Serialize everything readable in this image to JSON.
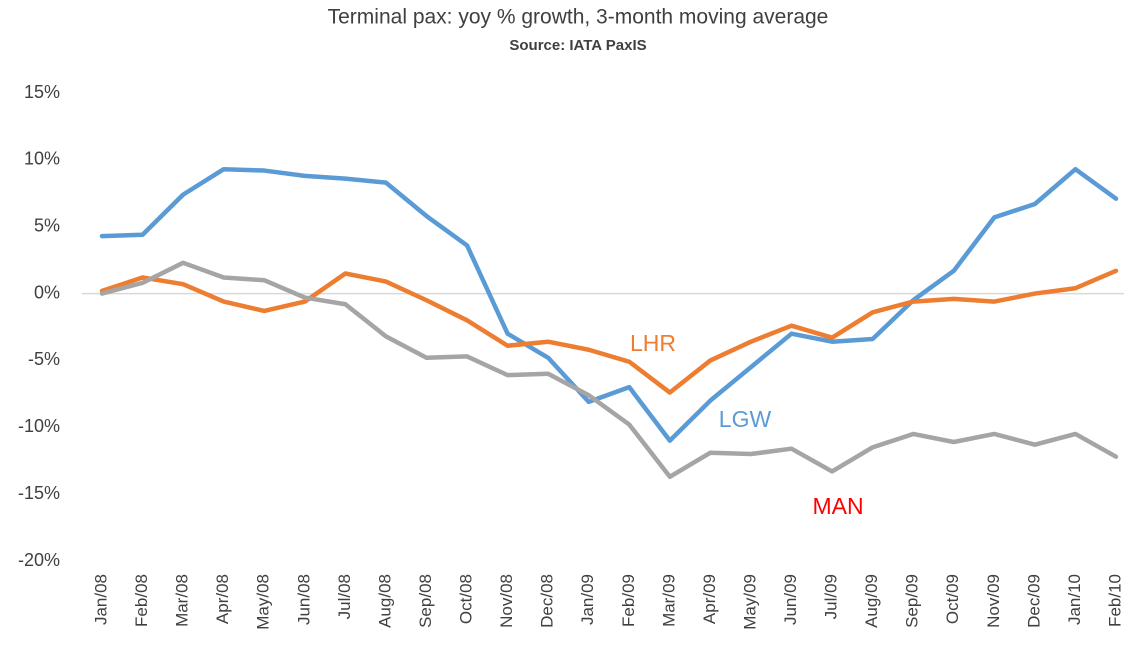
{
  "chart_data": {
    "type": "line",
    "title": "Terminal pax: yoy % growth, 3-month moving average",
    "subtitle": "Source: IATA PaxIS",
    "categories": [
      "Jan/08",
      "Feb/08",
      "Mar/08",
      "Apr/08",
      "May/08",
      "Jun/08",
      "Jul/08",
      "Aug/08",
      "Sep/08",
      "Oct/08",
      "Nov/08",
      "Dec/08",
      "Jan/09",
      "Feb/09",
      "Mar/09",
      "Apr/09",
      "May/09",
      "Jun/09",
      "Jul/09",
      "Aug/09",
      "Sep/09",
      "Oct/09",
      "Nov/09",
      "Dec/09",
      "Jan/10",
      "Feb/10"
    ],
    "series": [
      {
        "name": "LGW",
        "color": "#5b9bd5",
        "label_color": "#5b9bd5",
        "values": [
          4.3,
          4.4,
          7.4,
          9.3,
          9.2,
          8.8,
          8.6,
          8.3,
          5.8,
          3.6,
          -3.0,
          -4.8,
          -8.1,
          -7.0,
          -11.0,
          -8.0,
          -5.5,
          -3.0,
          -3.6,
          -3.4,
          -0.5,
          1.7,
          5.7,
          6.7,
          9.3,
          7.1
        ]
      },
      {
        "name": "LHR",
        "color": "#ed7d31",
        "label_color": "#ed7d31",
        "values": [
          0.2,
          1.2,
          0.7,
          -0.6,
          -1.3,
          -0.6,
          1.5,
          0.9,
          -0.5,
          -2.0,
          -3.9,
          -3.6,
          -4.2,
          -5.1,
          -7.4,
          -5.0,
          -3.6,
          -2.4,
          -3.3,
          -1.4,
          -0.6,
          -0.4,
          -0.6,
          0.0,
          0.4,
          1.7
        ]
      },
      {
        "name": "MAN",
        "color": "#a5a5a5",
        "label_color": "#ff0000",
        "values": [
          0.0,
          0.8,
          2.3,
          1.2,
          1.0,
          -0.3,
          -0.8,
          -3.2,
          -4.8,
          -4.7,
          -6.1,
          -6.0,
          -7.6,
          -9.8,
          -13.7,
          -11.9,
          -12.0,
          -11.6,
          -13.3,
          -11.5,
          -10.5,
          -11.1,
          -10.5,
          -11.3,
          -10.5,
          -12.2
        ]
      }
    ],
    "ylim": [
      -20,
      15
    ],
    "yticks": [
      {
        "value": -20,
        "label": "-20%"
      },
      {
        "value": -15,
        "label": "-15%"
      },
      {
        "value": -10,
        "label": "-10%"
      },
      {
        "value": -5,
        "label": "-5%"
      },
      {
        "value": 0,
        "label": "0%"
      },
      {
        "value": 5,
        "label": "5%"
      },
      {
        "value": 10,
        "label": "10%"
      },
      {
        "value": 15,
        "label": "15%"
      }
    ],
    "grid": false
  }
}
